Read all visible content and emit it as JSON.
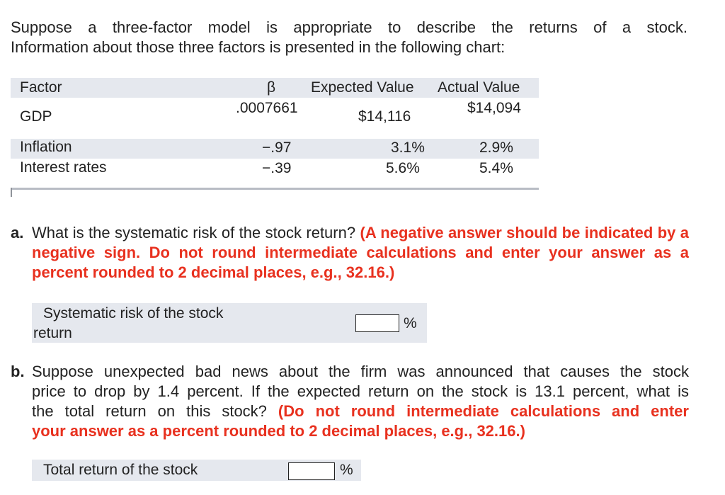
{
  "intro": {
    "line1": "Suppose a three-factor model is appropriate to describe the returns of a stock.",
    "line2": "Information about those three factors is presented in the following chart:"
  },
  "table": {
    "headers": {
      "factor": "Factor",
      "beta": "β",
      "expected": "Expected Value",
      "actual": "Actual Value"
    },
    "rows": [
      {
        "factor": "GDP",
        "beta": ".0007661",
        "expected": "$14,116",
        "actual": "$14,094"
      },
      {
        "factor": "Inflation",
        "beta": "−.97",
        "expected": "3.1%",
        "actual": "2.9%"
      },
      {
        "factor": "Interest rates",
        "beta": "−.39",
        "expected": "5.6%",
        "actual": "5.4%"
      }
    ]
  },
  "question_a": {
    "letter": "a.",
    "text": "What is the systematic risk of the stock return?",
    "instruction": "(A negative answer should be indicated by a negative sign. Do not round intermediate calculations and enter your answer as a percent rounded to 2 decimal places, e.g., 32.16.)",
    "field_label_line1": "Systematic risk of the stock",
    "field_label_line2": "return",
    "unit": "%",
    "value": ""
  },
  "question_b": {
    "letter": "b.",
    "text_line1": "Suppose unexpected bad news about the firm was announced that causes the stock",
    "text_line2": "price to drop by 1.4 percent. If the expected return on the stock is 13.1 percent, what is",
    "text_line3": "the total return on this stock?",
    "instruction_line3": "(Do not round intermediate calculations and enter",
    "instruction_line4": "your answer as a percent rounded to 2 decimal places, e.g., 32.16.)",
    "field_label": "Total return of the stock",
    "unit": "%",
    "value": ""
  }
}
